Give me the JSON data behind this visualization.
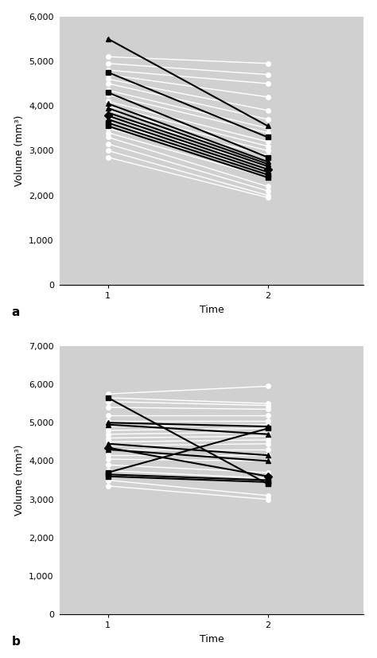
{
  "panel_a": {
    "title_label": "a",
    "ylabel": "Volume (mm³)",
    "xlabel": "Time",
    "ylim": [
      0,
      6000
    ],
    "yticks": [
      0,
      1000,
      2000,
      3000,
      4000,
      5000,
      6000
    ],
    "xticks": [
      1,
      2
    ],
    "xlim": [
      0.7,
      2.6
    ],
    "bg_color": "#d0d0d0",
    "white_lines": [
      [
        5100,
        4950
      ],
      [
        4950,
        4700
      ],
      [
        4800,
        4500
      ],
      [
        4700,
        4200
      ],
      [
        4600,
        3900
      ],
      [
        4500,
        3700
      ],
      [
        4350,
        3500
      ],
      [
        4250,
        3400
      ],
      [
        4100,
        3200
      ],
      [
        4000,
        3100
      ],
      [
        3900,
        3000
      ],
      [
        3750,
        2900
      ],
      [
        3600,
        2700
      ],
      [
        3500,
        2550
      ],
      [
        3400,
        2400
      ],
      [
        3300,
        2200
      ],
      [
        3150,
        2100
      ],
      [
        3000,
        2000
      ],
      [
        2850,
        1950
      ]
    ],
    "black_lines": [
      {
        "t1": 5500,
        "t2": 3550,
        "marker": "^"
      },
      {
        "t1": 4750,
        "t2": 3300,
        "marker": "s"
      },
      {
        "t1": 4300,
        "t2": 2850,
        "marker": "s"
      },
      {
        "t1": 4050,
        "t2": 2750,
        "marker": "^"
      },
      {
        "t1": 3950,
        "t2": 2700,
        "marker": "^"
      },
      {
        "t1": 3850,
        "t2": 2650,
        "marker": "^"
      },
      {
        "t1": 3780,
        "t2": 2580,
        "marker": "D"
      },
      {
        "t1": 3700,
        "t2": 2520,
        "marker": "^"
      },
      {
        "t1": 3620,
        "t2": 2460,
        "marker": "s"
      },
      {
        "t1": 3550,
        "t2": 2400,
        "marker": "s"
      }
    ]
  },
  "panel_b": {
    "title_label": "b",
    "ylabel": "Volume (mm³)",
    "xlabel": "Time",
    "ylim": [
      0,
      7000
    ],
    "yticks": [
      0,
      1000,
      2000,
      3000,
      4000,
      5000,
      6000,
      7000
    ],
    "xticks": [
      1,
      2
    ],
    "xlim": [
      0.7,
      2.6
    ],
    "bg_color": "#d0d0d0",
    "white_lines": [
      [
        5750,
        5950
      ],
      [
        5650,
        5500
      ],
      [
        5550,
        5450
      ],
      [
        5400,
        5350
      ],
      [
        5200,
        5200
      ],
      [
        5050,
        5050
      ],
      [
        4900,
        4950
      ],
      [
        4800,
        4850
      ],
      [
        4700,
        4750
      ],
      [
        4600,
        4650
      ],
      [
        4500,
        4550
      ],
      [
        4400,
        4450
      ],
      [
        4300,
        4300
      ],
      [
        4150,
        4150
      ],
      [
        4050,
        4000
      ],
      [
        3900,
        3700
      ],
      [
        3750,
        3550
      ],
      [
        3500,
        3100
      ],
      [
        3350,
        3000
      ]
    ],
    "black_lines": [
      {
        "t1": 5650,
        "t2": 3400,
        "marker": "s"
      },
      {
        "t1": 5000,
        "t2": 4900,
        "marker": "^"
      },
      {
        "t1": 4950,
        "t2": 4700,
        "marker": "^"
      },
      {
        "t1": 4450,
        "t2": 4150,
        "marker": "^"
      },
      {
        "t1": 4350,
        "t2": 3600,
        "marker": "D"
      },
      {
        "t1": 4300,
        "t2": 4000,
        "marker": "^"
      },
      {
        "t1": 3700,
        "t2": 4850,
        "marker": "s"
      },
      {
        "t1": 3650,
        "t2": 3500,
        "marker": "s"
      },
      {
        "t1": 3600,
        "t2": 3450,
        "marker": "s"
      }
    ]
  },
  "fig_bg": "#ffffff",
  "label_fontsize": 11,
  "axis_fontsize": 9,
  "tick_fontsize": 8,
  "white_lw": 1.0,
  "black_lw": 1.5,
  "white_ms": 4,
  "black_ms": 5
}
